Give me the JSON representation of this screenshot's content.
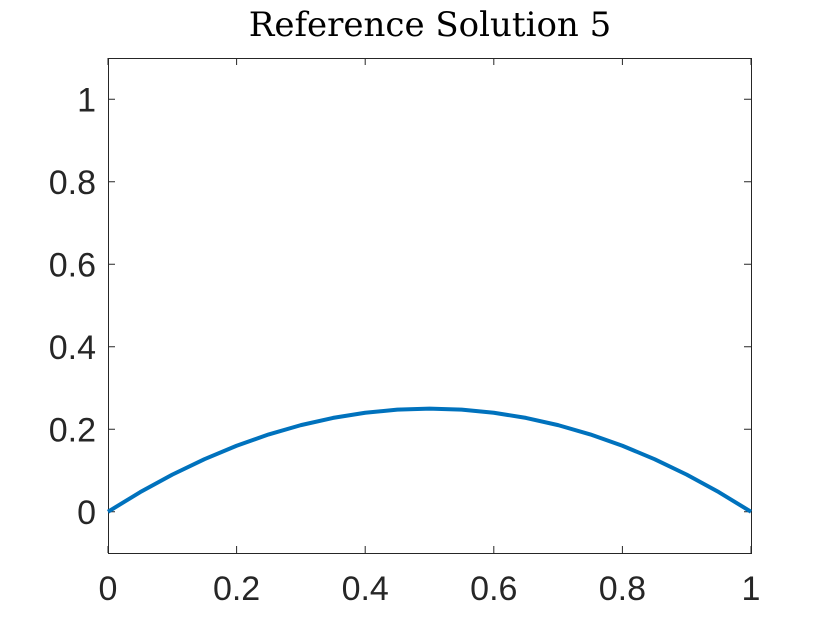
{
  "chart_data": {
    "type": "line",
    "title": "Reference Solution 5",
    "xlabel": "",
    "ylabel": "",
    "xlim": [
      0,
      1
    ],
    "ylim": [
      -0.1,
      1.1
    ],
    "xticks": [
      0,
      0.2,
      0.4,
      0.6,
      0.8,
      1
    ],
    "xtick_labels": [
      "0",
      "0.2",
      "0.4",
      "0.6",
      "0.8",
      "1"
    ],
    "yticks": [
      0,
      0.2,
      0.4,
      0.6,
      0.8,
      1
    ],
    "ytick_labels": [
      "0",
      "0.2",
      "0.4",
      "0.6",
      "0.8",
      "1"
    ],
    "grid": false,
    "series": [
      {
        "color": "#0072bd",
        "x": [
          0,
          0.05,
          0.1,
          0.15,
          0.2,
          0.25,
          0.3,
          0.35,
          0.4,
          0.45,
          0.5,
          0.55,
          0.6,
          0.65,
          0.7,
          0.75,
          0.8,
          0.85,
          0.9,
          0.95,
          1
        ],
        "y": [
          0,
          0.0475,
          0.09,
          0.1275,
          0.16,
          0.1875,
          0.21,
          0.2275,
          0.24,
          0.2475,
          0.25,
          0.2475,
          0.24,
          0.2275,
          0.21,
          0.1875,
          0.16,
          0.1275,
          0.09,
          0.0475,
          0
        ]
      }
    ]
  }
}
